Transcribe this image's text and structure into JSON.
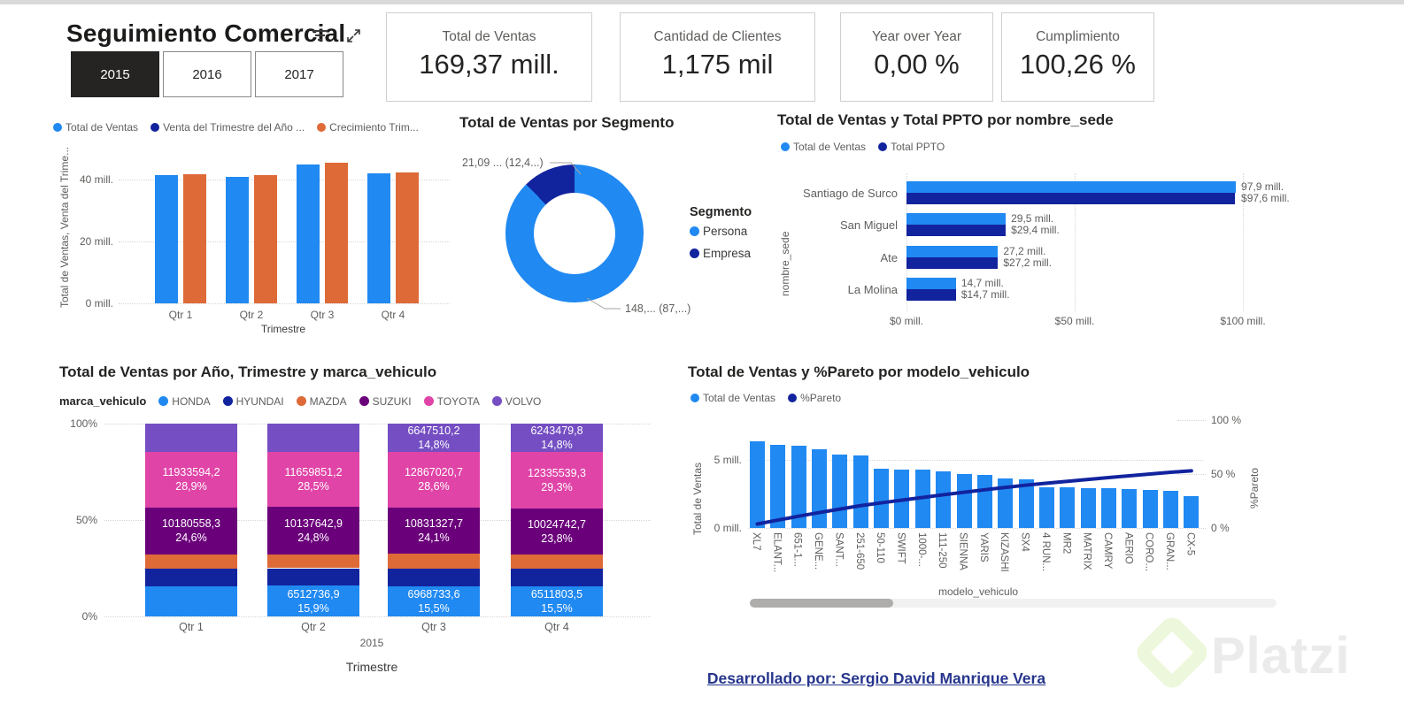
{
  "header": {
    "title": "Seguimiento Comercial",
    "years": [
      {
        "label": "2015",
        "selected": true
      },
      {
        "label": "2016",
        "selected": false
      },
      {
        "label": "2017",
        "selected": false
      }
    ],
    "kpis": [
      {
        "label": "Total de Ventas",
        "value": "169,37 mill."
      },
      {
        "label": "Cantidad de Clientes",
        "value": "1,175 mil"
      },
      {
        "label": "Year over Year",
        "value": "0,00 %"
      },
      {
        "label": "Cumplimiento",
        "value": "100,26 %"
      }
    ]
  },
  "colors": {
    "blue": "#2089F2",
    "navy": "#12239E",
    "orange": "#DE6A38",
    "purple": "#6B007B",
    "pink": "#E044A7",
    "violet": "#744EC2",
    "title_text": "#252423",
    "axis_text": "#605E5C",
    "footer_link": "#26358C",
    "slicer_selected_bg": "#252423"
  },
  "chart_data": [
    {
      "id": "ventas-trimestre",
      "type": "bar",
      "orientation": "vertical-clustered",
      "legend": [
        {
          "label": "Total de Ventas",
          "color": "blue"
        },
        {
          "label": "Venta del Trimestre del Año ...",
          "color": "navy"
        },
        {
          "label": "Crecimiento Trim...",
          "color": "orange"
        }
      ],
      "categories": [
        "Qtr 1",
        "Qtr 2",
        "Qtr 3",
        "Qtr 4"
      ],
      "series": [
        {
          "name": "Total de Ventas",
          "color": "blue",
          "values": [
            41.3,
            41.0,
            45.0,
            42.0
          ]
        },
        {
          "name": "Crecimiento Trim...",
          "color": "orange",
          "values": [
            41.8,
            41.3,
            45.4,
            42.4
          ]
        }
      ],
      "values_unit": "mill.",
      "yticks": [
        {
          "label": "40 mill.",
          "value": 40
        },
        {
          "label": "20 mill.",
          "value": 20
        },
        {
          "label": "0 mill.",
          "value": 0
        }
      ],
      "ylim": [
        0,
        48
      ],
      "ylabel": "Total de Ventas, Venta del Trime...",
      "xlabel": "Trimestre",
      "grid": true
    },
    {
      "id": "ventas-segmento",
      "type": "pie",
      "title": "Total de Ventas por Segmento",
      "legend_title": "Segmento",
      "slices": [
        {
          "label": "Persona",
          "color": "blue",
          "pct": 87.6,
          "callout": "148,... (87,...)"
        },
        {
          "label": "Empresa",
          "color": "navy",
          "pct": 12.4,
          "callout": "21,09 ... (12,4...)"
        }
      ]
    },
    {
      "id": "ventas-ppto-sede",
      "type": "bar",
      "orientation": "horizontal-clustered",
      "title": "Total de Ventas y Total PPTO por nombre_sede",
      "legend": [
        {
          "label": "Total de Ventas",
          "color": "blue"
        },
        {
          "label": "Total PPTO",
          "color": "navy"
        }
      ],
      "ylabel": "nombre_sede",
      "categories": [
        "Santiago de Surco",
        "San Miguel",
        "Ate",
        "La Molina"
      ],
      "series": [
        {
          "name": "Total de Ventas",
          "color": "blue",
          "values": [
            97.9,
            29.5,
            27.2,
            14.7
          ],
          "labels": [
            "97,9 mill.",
            "29,5 mill.",
            "27,2 mill.",
            "14,7 mill."
          ]
        },
        {
          "name": "Total PPTO",
          "color": "navy",
          "values": [
            97.6,
            29.4,
            27.2,
            14.7
          ],
          "labels": [
            "$97,6 mill.",
            "$29,4 mill.",
            "$27,2 mill.",
            "$14,7 mill."
          ]
        }
      ],
      "xticks": [
        {
          "label": "$0 mill.",
          "value": 0
        },
        {
          "label": "$50 mill.",
          "value": 50
        },
        {
          "label": "$100 mill.",
          "value": 100
        }
      ],
      "xlim": [
        0,
        100
      ],
      "grid": true
    },
    {
      "id": "ventas-marca",
      "type": "bar",
      "orientation": "vertical-stacked-100",
      "title": "Total de Ventas por Año, Trimestre y marca_vehiculo",
      "legend_title": "marca_vehiculo",
      "legend": [
        {
          "label": "HONDA",
          "color": "blue"
        },
        {
          "label": "HYUNDAI",
          "color": "navy"
        },
        {
          "label": "MAZDA",
          "color": "orange"
        },
        {
          "label": "SUZUKI",
          "color": "purple"
        },
        {
          "label": "TOYOTA",
          "color": "pink"
        },
        {
          "label": "VOLVO",
          "color": "violet"
        }
      ],
      "categories": [
        "Qtr 1",
        "Qtr 2",
        "Qtr 3",
        "Qtr 4"
      ],
      "year_label": "2015",
      "xlabel": "Trimestre",
      "yticks": [
        {
          "label": "100%",
          "value": 100
        },
        {
          "label": "50%",
          "value": 50
        },
        {
          "label": "0%",
          "value": 0
        }
      ],
      "columns": [
        {
          "category": "Qtr 1",
          "segments": [
            {
              "brand": "HONDA",
              "pct": 15.8
            },
            {
              "brand": "HYUNDAI",
              "pct": 9.0
            },
            {
              "brand": "MAZDA",
              "pct": 7.2
            },
            {
              "brand": "SUZUKI",
              "pct": 24.6,
              "value_label": "10180558,3",
              "pct_label": "24,6%"
            },
            {
              "brand": "TOYOTA",
              "pct": 28.9,
              "value_label": "11933594,2",
              "pct_label": "28,9%"
            },
            {
              "brand": "VOLVO",
              "pct": 14.5
            }
          ]
        },
        {
          "category": "Qtr 2",
          "segments": [
            {
              "brand": "HONDA",
              "pct": 15.9,
              "value_label": "6512736,9",
              "pct_label": "15,9%"
            },
            {
              "brand": "HYUNDAI",
              "pct": 9.1
            },
            {
              "brand": "MAZDA",
              "pct": 7.0
            },
            {
              "brand": "SUZUKI",
              "pct": 24.8,
              "value_label": "10137642,9",
              "pct_label": "24,8%"
            },
            {
              "brand": "TOYOTA",
              "pct": 28.5,
              "value_label": "11659851,2",
              "pct_label": "28,5%"
            },
            {
              "brand": "VOLVO",
              "pct": 14.7
            }
          ]
        },
        {
          "category": "Qtr 3",
          "segments": [
            {
              "brand": "HONDA",
              "pct": 15.5,
              "value_label": "6968733,6",
              "pct_label": "15,5%"
            },
            {
              "brand": "HYUNDAI",
              "pct": 9.4
            },
            {
              "brand": "MAZDA",
              "pct": 7.6
            },
            {
              "brand": "SUZUKI",
              "pct": 24.1,
              "value_label": "10831327,7",
              "pct_label": "24,1%"
            },
            {
              "brand": "TOYOTA",
              "pct": 28.6,
              "value_label": "12867020,7",
              "pct_label": "28,6%"
            },
            {
              "brand": "VOLVO",
              "pct": 14.8,
              "value_label": "6647510,2",
              "pct_label": "14,8%"
            }
          ]
        },
        {
          "category": "Qtr 4",
          "segments": [
            {
              "brand": "HONDA",
              "pct": 15.5,
              "value_label": "6511803,5",
              "pct_label": "15,5%"
            },
            {
              "brand": "HYUNDAI",
              "pct": 9.4
            },
            {
              "brand": "MAZDA",
              "pct": 7.2
            },
            {
              "brand": "SUZUKI",
              "pct": 23.8,
              "value_label": "10024742,7",
              "pct_label": "23,8%"
            },
            {
              "brand": "TOYOTA",
              "pct": 29.3,
              "value_label": "12335539,3",
              "pct_label": "29,3%"
            },
            {
              "brand": "VOLVO",
              "pct": 14.8,
              "value_label": "6243479,8",
              "pct_label": "14,8%"
            }
          ]
        }
      ]
    },
    {
      "id": "pareto-modelo",
      "type": "bar",
      "orientation": "vertical-with-line",
      "title": "Total de Ventas y %Pareto por modelo_vehiculo",
      "legend": [
        {
          "label": "Total de Ventas",
          "color": "blue"
        },
        {
          "label": "%Pareto",
          "color": "navy"
        }
      ],
      "ylabel_left": "Total de Ventas",
      "ylabel_right": "%Pareto",
      "xlabel": "modelo_vehiculo",
      "yticks_left": [
        {
          "label": "5 mill.",
          "value": 5
        },
        {
          "label": "0 mill.",
          "value": 0
        }
      ],
      "yticks_right": [
        {
          "label": "100 %",
          "value": 100
        },
        {
          "label": "50 %",
          "value": 50
        },
        {
          "label": "0 %",
          "value": 0
        }
      ],
      "categories": [
        "XL7",
        "ELANT...",
        "651-1...",
        "GENE...",
        "SANT...",
        "251-650",
        "50-110",
        "SWIFT",
        "1000-...",
        "111-250",
        "SIENNA",
        "YARIS",
        "KIZASHI",
        "SX4",
        "4 RUN...",
        "MR2",
        "MATRIX",
        "CAMRY",
        "AERIO",
        "CORO...",
        "GRAN...",
        "CX-5"
      ],
      "bar_values_mill": [
        6.35,
        6.1,
        6.05,
        5.8,
        5.4,
        5.35,
        4.35,
        4.3,
        4.3,
        4.15,
        3.95,
        3.9,
        3.65,
        3.6,
        3.0,
        3.0,
        2.95,
        2.9,
        2.87,
        2.8,
        2.7,
        2.35
      ],
      "line_pct": [
        3.7,
        7.3,
        10.9,
        14.3,
        17.5,
        20.7,
        23.3,
        25.8,
        28.3,
        30.8,
        33.1,
        35.4,
        37.6,
        39.7,
        41.5,
        43.2,
        45.0,
        46.7,
        48.4,
        50.0,
        51.6,
        53.0
      ],
      "has_scrollbar": true
    }
  ],
  "footer": {
    "credit": "Desarrollado por: Sergio David Manrique Vera"
  },
  "watermark": {
    "text": "Platzi"
  }
}
